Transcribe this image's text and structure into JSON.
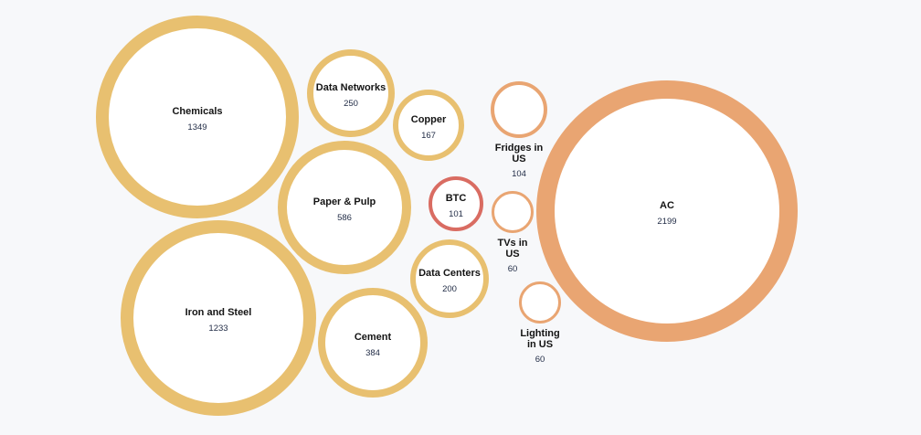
{
  "chart_data": {
    "type": "bubble",
    "palette": {
      "background": "#f7f8fa",
      "yellow": "#e8c070",
      "orange": "#e9a572",
      "red": "#d96c62"
    },
    "bubbles": [
      {
        "id": "chemicals",
        "label": "Chemicals",
        "value": "1349",
        "color": "yellow"
      },
      {
        "id": "data-networks",
        "label": "Data Networks",
        "value": "250",
        "color": "yellow"
      },
      {
        "id": "copper",
        "label": "Copper",
        "value": "167",
        "color": "yellow"
      },
      {
        "id": "paper-pulp",
        "label": "Paper & Pulp",
        "value": "586",
        "color": "yellow"
      },
      {
        "id": "btc",
        "label": "BTC",
        "value": "101",
        "color": "red"
      },
      {
        "id": "iron-steel",
        "label": "Iron and Steel",
        "value": "1233",
        "color": "yellow"
      },
      {
        "id": "data-centers",
        "label": "Data Centers",
        "value": "200",
        "color": "yellow"
      },
      {
        "id": "cement",
        "label": "Cement",
        "value": "384",
        "color": "yellow"
      },
      {
        "id": "fridges-us",
        "label": "Fridges in US",
        "value": "104",
        "color": "orange"
      },
      {
        "id": "tvs-us",
        "label": "TVs in US",
        "value": "60",
        "color": "orange"
      },
      {
        "id": "lighting-us",
        "label": "Lighting in US",
        "value": "60",
        "color": "orange"
      },
      {
        "id": "ac",
        "label": "AC",
        "value": "2199",
        "color": "orange"
      }
    ]
  }
}
